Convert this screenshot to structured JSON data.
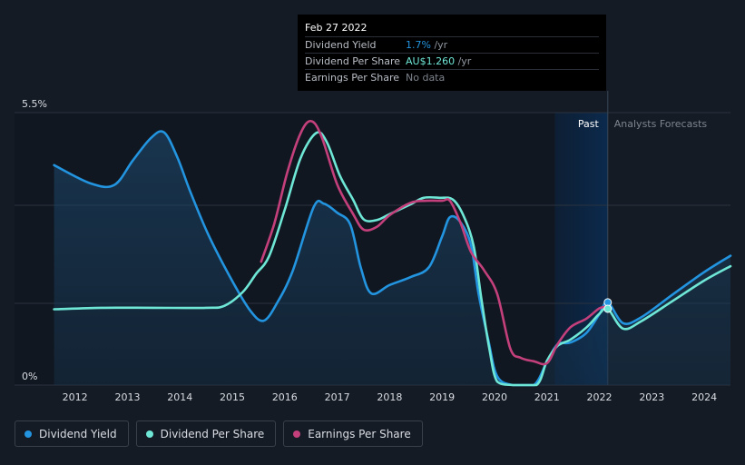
{
  "colors": {
    "background": "#151b24",
    "dividend_yield": "#2394df",
    "dividend_per_share": "#6fe7d6",
    "earnings_per_share": "#c4407c",
    "forecast_band": "#0b2a4d"
  },
  "tooltip": {
    "date": "Feb 27 2022",
    "rows": [
      {
        "label": "Dividend Yield",
        "value": "1.7%",
        "unit": " /yr"
      },
      {
        "label": "Dividend Per Share",
        "value": "AU$1.260",
        "unit": " /yr"
      },
      {
        "label": "Earnings Per Share",
        "value": "No data",
        "unit": ""
      }
    ]
  },
  "regions": {
    "past_label": "Past",
    "forecast_label": "Analysts Forecasts"
  },
  "legend": [
    {
      "label": "Dividend Yield",
      "color": "#2394df"
    },
    {
      "label": "Dividend Per Share",
      "color": "#6fe7d6"
    },
    {
      "label": "Earnings Per Share",
      "color": "#c4407c"
    }
  ],
  "chart_data": {
    "type": "line",
    "x_ticks": [
      "2012",
      "2013",
      "2014",
      "2015",
      "2016",
      "2017",
      "2018",
      "2019",
      "2020",
      "2021",
      "2022",
      "2023",
      "2024"
    ],
    "y_tick_labels": [
      "5.5%",
      "0%"
    ],
    "ylim": [
      0,
      5.5
    ],
    "xlim": [
      2011.4,
      2024.5
    ],
    "past_end": 2022.16,
    "forecast_band_start": 2021.15,
    "grid": true,
    "legend_position": "bottom-left",
    "series": [
      {
        "name": "Dividend Yield",
        "color": "#2394df",
        "area": true,
        "points": [
          [
            2011.6,
            4.44
          ],
          [
            2012.3,
            4.07
          ],
          [
            2012.75,
            4.04
          ],
          [
            2013.1,
            4.53
          ],
          [
            2013.45,
            4.99
          ],
          [
            2013.7,
            5.1
          ],
          [
            2013.95,
            4.6
          ],
          [
            2014.2,
            3.9
          ],
          [
            2014.55,
            3.02
          ],
          [
            2015.0,
            2.1
          ],
          [
            2015.35,
            1.49
          ],
          [
            2015.6,
            1.3
          ],
          [
            2015.85,
            1.65
          ],
          [
            2016.15,
            2.3
          ],
          [
            2016.55,
            3.59
          ],
          [
            2016.75,
            3.66
          ],
          [
            2017.0,
            3.48
          ],
          [
            2017.25,
            3.24
          ],
          [
            2017.45,
            2.37
          ],
          [
            2017.65,
            1.85
          ],
          [
            2018.0,
            2.02
          ],
          [
            2018.4,
            2.18
          ],
          [
            2018.75,
            2.38
          ],
          [
            2019.0,
            3.0
          ],
          [
            2019.15,
            3.39
          ],
          [
            2019.35,
            3.29
          ],
          [
            2019.55,
            2.83
          ],
          [
            2019.7,
            1.82
          ],
          [
            2019.88,
            0.92
          ],
          [
            2020.05,
            0.18
          ],
          [
            2020.35,
            0.0
          ],
          [
            2020.75,
            0.0
          ],
          [
            2021.0,
            0.47
          ],
          [
            2021.2,
            0.82
          ],
          [
            2021.45,
            0.86
          ],
          [
            2021.75,
            1.05
          ],
          [
            2022.0,
            1.43
          ],
          [
            2022.16,
            1.67
          ],
          [
            2022.45,
            1.25
          ],
          [
            2022.8,
            1.37
          ],
          [
            2023.4,
            1.83
          ],
          [
            2024.0,
            2.28
          ],
          [
            2024.5,
            2.61
          ]
        ]
      },
      {
        "name": "Dividend Per Share",
        "color": "#6fe7d6",
        "points": [
          [
            2011.6,
            1.53
          ],
          [
            2012.5,
            1.56
          ],
          [
            2013.5,
            1.56
          ],
          [
            2014.5,
            1.56
          ],
          [
            2014.85,
            1.6
          ],
          [
            2015.2,
            1.88
          ],
          [
            2015.45,
            2.24
          ],
          [
            2015.7,
            2.6
          ],
          [
            2016.0,
            3.54
          ],
          [
            2016.3,
            4.58
          ],
          [
            2016.6,
            5.09
          ],
          [
            2016.8,
            4.91
          ],
          [
            2017.05,
            4.23
          ],
          [
            2017.3,
            3.75
          ],
          [
            2017.5,
            3.35
          ],
          [
            2017.75,
            3.33
          ],
          [
            2018.0,
            3.45
          ],
          [
            2018.4,
            3.65
          ],
          [
            2018.65,
            3.78
          ],
          [
            2018.95,
            3.78
          ],
          [
            2019.2,
            3.75
          ],
          [
            2019.4,
            3.44
          ],
          [
            2019.6,
            2.82
          ],
          [
            2019.75,
            1.74
          ],
          [
            2019.9,
            0.74
          ],
          [
            2020.05,
            0.07
          ],
          [
            2020.35,
            0.0
          ],
          [
            2020.8,
            0.0
          ],
          [
            2021.0,
            0.49
          ],
          [
            2021.2,
            0.79
          ],
          [
            2021.45,
            0.92
          ],
          [
            2021.75,
            1.16
          ],
          [
            2022.0,
            1.44
          ],
          [
            2022.16,
            1.54
          ],
          [
            2022.45,
            1.14
          ],
          [
            2022.8,
            1.29
          ],
          [
            2023.4,
            1.7
          ],
          [
            2024.0,
            2.11
          ],
          [
            2024.5,
            2.4
          ]
        ]
      },
      {
        "name": "Earnings Per Share",
        "color": "#c4407c",
        "points": [
          [
            2015.55,
            2.49
          ],
          [
            2015.8,
            3.26
          ],
          [
            2016.05,
            4.3
          ],
          [
            2016.3,
            5.08
          ],
          [
            2016.5,
            5.33
          ],
          [
            2016.7,
            5.02
          ],
          [
            2017.0,
            4.05
          ],
          [
            2017.3,
            3.46
          ],
          [
            2017.5,
            3.14
          ],
          [
            2017.75,
            3.19
          ],
          [
            2018.0,
            3.43
          ],
          [
            2018.4,
            3.68
          ],
          [
            2018.7,
            3.72
          ],
          [
            2019.0,
            3.72
          ],
          [
            2019.15,
            3.72
          ],
          [
            2019.35,
            3.28
          ],
          [
            2019.55,
            2.69
          ],
          [
            2019.8,
            2.32
          ],
          [
            2020.05,
            1.84
          ],
          [
            2020.3,
            0.74
          ],
          [
            2020.5,
            0.55
          ],
          [
            2020.75,
            0.48
          ],
          [
            2021.0,
            0.44
          ],
          [
            2021.2,
            0.82
          ],
          [
            2021.45,
            1.17
          ],
          [
            2021.75,
            1.34
          ],
          [
            2022.0,
            1.55
          ],
          [
            2022.15,
            1.58
          ]
        ]
      }
    ],
    "markers": [
      {
        "series": "Dividend Yield",
        "x": 2022.16,
        "y": 1.67
      },
      {
        "series": "Dividend Per Share",
        "x": 2022.16,
        "y": 1.54
      }
    ]
  }
}
